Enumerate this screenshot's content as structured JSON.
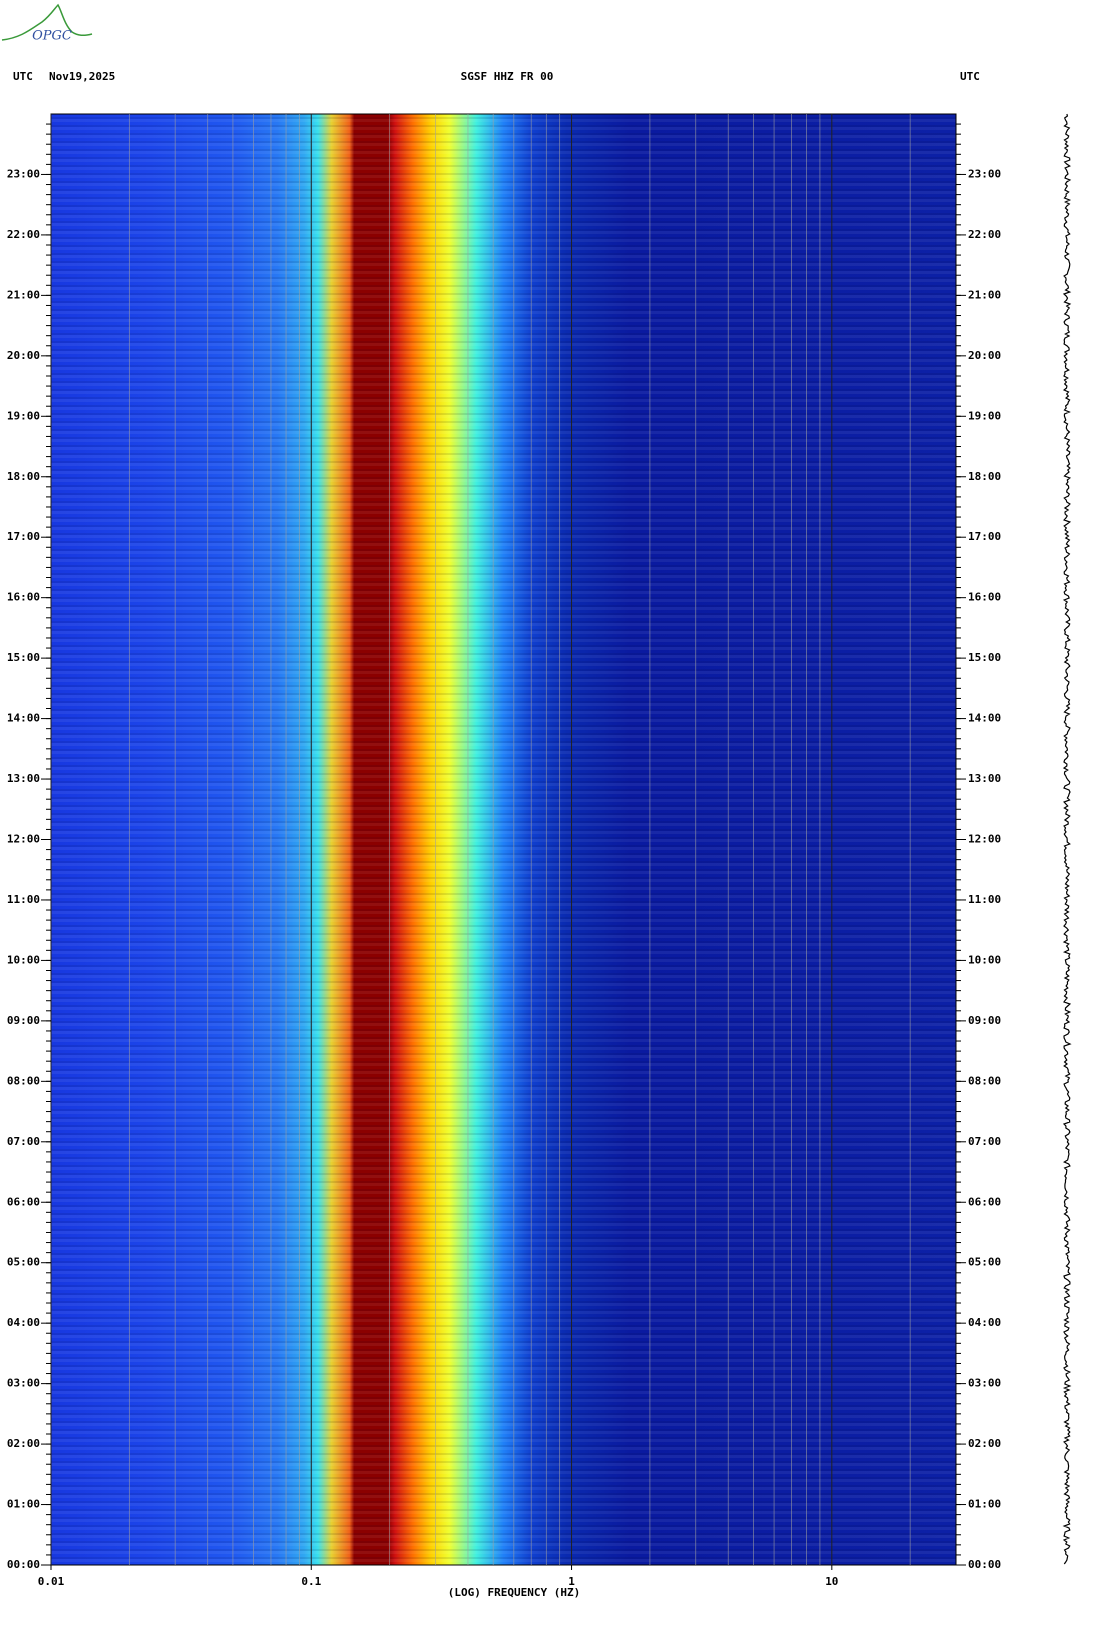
{
  "chart_data": {
    "type": "spectrogram",
    "logo": "OPGC",
    "time_zone_left": "UTC",
    "date": "Nov19,2025",
    "title": "SGSF HHZ FR 00",
    "time_zone_right": "UTC",
    "xlabel": "(LOG) FREQUENCY (HZ)",
    "log_x": true,
    "xlim": [
      0.01,
      30
    ],
    "xticks": [
      0.01,
      0.1,
      1,
      10
    ],
    "ylim": [
      0,
      24
    ],
    "yticks": [
      {
        "value": 0,
        "label": "00:00"
      },
      {
        "value": 1,
        "label": "01:00"
      },
      {
        "value": 2,
        "label": "02:00"
      },
      {
        "value": 3,
        "label": "03:00"
      },
      {
        "value": 4,
        "label": "04:00"
      },
      {
        "value": 5,
        "label": "05:00"
      },
      {
        "value": 6,
        "label": "06:00"
      },
      {
        "value": 7,
        "label": "07:00"
      },
      {
        "value": 8,
        "label": "08:00"
      },
      {
        "value": 9,
        "label": "09:00"
      },
      {
        "value": 10,
        "label": "10:00"
      },
      {
        "value": 11,
        "label": "11:00"
      },
      {
        "value": 12,
        "label": "12:00"
      },
      {
        "value": 13,
        "label": "13:00"
      },
      {
        "value": 14,
        "label": "14:00"
      },
      {
        "value": 15,
        "label": "15:00"
      },
      {
        "value": 16,
        "label": "16:00"
      },
      {
        "value": 17,
        "label": "17:00"
      },
      {
        "value": 18,
        "label": "18:00"
      },
      {
        "value": 19,
        "label": "19:00"
      },
      {
        "value": 20,
        "label": "20:00"
      },
      {
        "value": 21,
        "label": "21:00"
      },
      {
        "value": 22,
        "label": "22:00"
      },
      {
        "value": 23,
        "label": "23:00"
      }
    ]
  }
}
